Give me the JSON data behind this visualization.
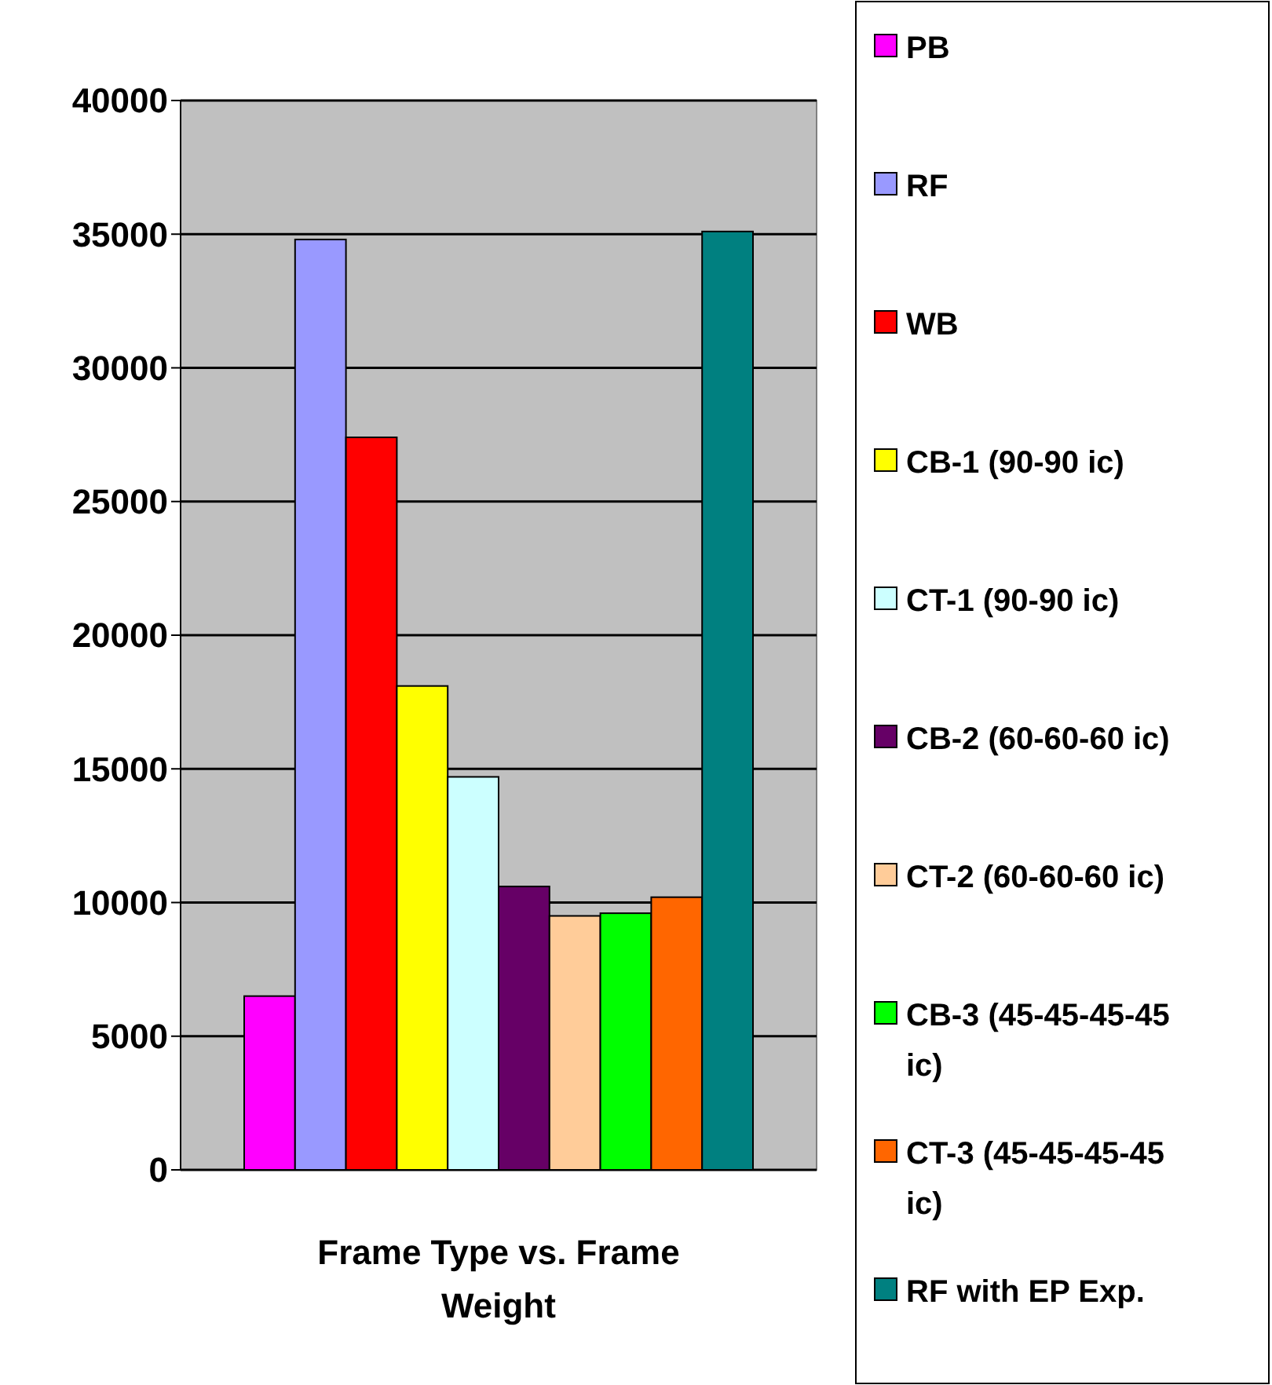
{
  "chart_data": {
    "type": "bar",
    "xlabel": "Frame Type vs. Frame Weight",
    "categories": [
      null
    ],
    "series": [
      {
        "name": "PB",
        "color": "#ff00ff",
        "values": [
          6500
        ]
      },
      {
        "name": "RF",
        "color": "#9999ff",
        "values": [
          34800
        ]
      },
      {
        "name": "WB",
        "color": "#ff0000",
        "values": [
          27400
        ]
      },
      {
        "name": "CB-1 (90-90 ic)",
        "color": "#ffff00",
        "values": [
          18100
        ]
      },
      {
        "name": "CT-1 (90-90 ic)",
        "color": "#ccffff",
        "values": [
          14700
        ]
      },
      {
        "name": "CB-2 (60-60-60 ic)",
        "color": "#660066",
        "values": [
          10600
        ]
      },
      {
        "name": "CT-2 (60-60-60 ic)",
        "color": "#ffcc99",
        "values": [
          9500
        ]
      },
      {
        "name": "CB-3 (45-45-45-45 ic)",
        "color": "#00ff00",
        "values": [
          9600
        ]
      },
      {
        "name": "CT-3 (45-45-45-45 ic)",
        "color": "#ff6600",
        "values": [
          10200
        ]
      },
      {
        "name": "RF with EP Exp.",
        "color": "#008080",
        "values": [
          35100
        ]
      }
    ],
    "ylim": [
      0,
      40000
    ],
    "yticks": [
      0,
      5000,
      10000,
      15000,
      20000,
      25000,
      30000,
      35000,
      40000
    ],
    "grid": "y",
    "legend": "right"
  }
}
